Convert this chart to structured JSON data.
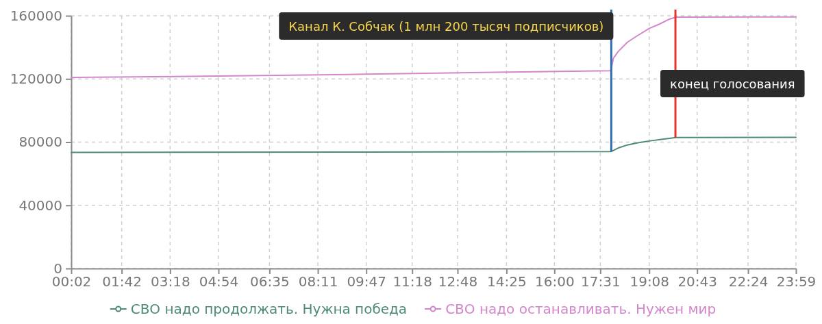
{
  "chart_data": {
    "type": "line",
    "series": [
      {
        "name": "СВО надо продолжать. Нужна победа",
        "color": "#4d8a78",
        "x": [
          0.0333,
          9.78,
          17.85,
          17.88,
          18.11,
          18.41,
          18.72,
          19.13,
          19.62,
          20.02,
          23.9833
        ],
        "values": [
          73500,
          73700,
          74000,
          74100,
          76300,
          78200,
          79500,
          80700,
          82000,
          82900,
          83000
        ]
      },
      {
        "name": "СВО надо останавливать. Нужен мир",
        "color": "#d386cc",
        "x": [
          0.0333,
          4.9,
          9.78,
          14.42,
          17.85,
          17.88,
          17.95,
          18.11,
          18.41,
          18.72,
          19.13,
          19.48,
          19.78,
          20.02,
          22.4,
          23.9833
        ],
        "values": [
          121000,
          121800,
          123000,
          124300,
          125200,
          126600,
          133100,
          137400,
          143200,
          147100,
          151900,
          154800,
          157700,
          159100,
          159200,
          159200
        ]
      }
    ],
    "xlim": [
      0.0333,
      23.9833
    ],
    "xticks": [
      {
        "value": 0.0333,
        "label": "00:02"
      },
      {
        "value": 1.7,
        "label": "01:42"
      },
      {
        "value": 3.3,
        "label": "03:18"
      },
      {
        "value": 4.9,
        "label": "04:54"
      },
      {
        "value": 6.5833,
        "label": "06:35"
      },
      {
        "value": 8.1833,
        "label": "08:11"
      },
      {
        "value": 9.7833,
        "label": "09:47"
      },
      {
        "value": 11.3,
        "label": "11:18"
      },
      {
        "value": 12.8,
        "label": "12:48"
      },
      {
        "value": 14.4167,
        "label": "14:25"
      },
      {
        "value": 16,
        "label": "16:00"
      },
      {
        "value": 17.5167,
        "label": "17:31"
      },
      {
        "value": 19.1333,
        "label": "19:08"
      },
      {
        "value": 20.7167,
        "label": "20:43"
      },
      {
        "value": 22.4,
        "label": "22:24"
      },
      {
        "value": 23.9833,
        "label": "23:59"
      }
    ],
    "ylim": [
      0,
      160000
    ],
    "yticks": [
      0,
      40000,
      80000,
      120000,
      160000
    ],
    "grid": true,
    "legend": "bottom",
    "ref_lines": [
      {
        "axis": "x",
        "value": 17.88,
        "label": "Канал К. Собчак (1 млн 200 тысяч подписчиков)",
        "color": "#2f6db5"
      },
      {
        "axis": "x",
        "value": 20.0,
        "label": "конец голосования",
        "color": "#e0362c"
      }
    ]
  }
}
